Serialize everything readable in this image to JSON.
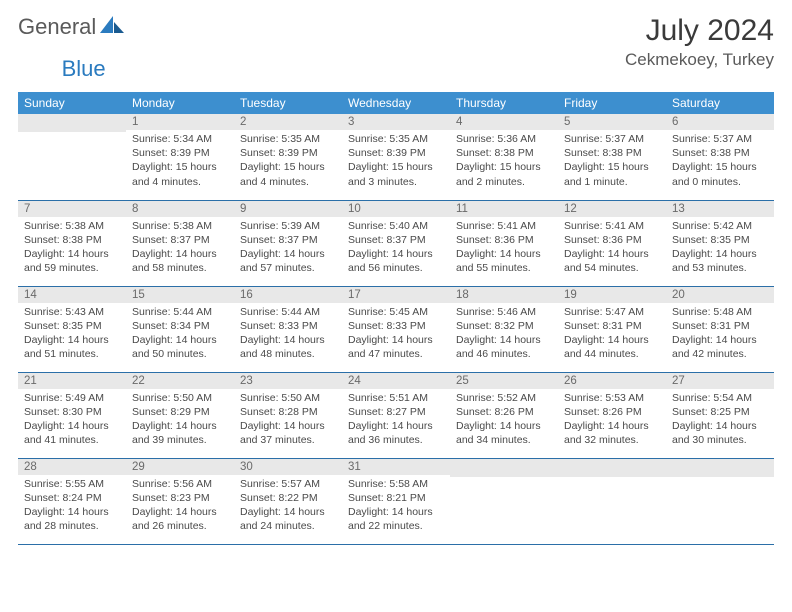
{
  "brand": {
    "word1": "General",
    "word2": "Blue"
  },
  "title": "July 2024",
  "location": "Cekmekoey, Turkey",
  "colors": {
    "header_bg": "#3d8fcf",
    "header_text": "#ffffff",
    "daynum_bg": "#e8e8e8",
    "row_border": "#2b6fa8",
    "logo_blue": "#2b7bbf"
  },
  "weekdays": [
    "Sunday",
    "Monday",
    "Tuesday",
    "Wednesday",
    "Thursday",
    "Friday",
    "Saturday"
  ],
  "weeks": [
    [
      {
        "n": "",
        "sr": "",
        "ss": "",
        "d1": "",
        "d2": ""
      },
      {
        "n": "1",
        "sr": "Sunrise: 5:34 AM",
        "ss": "Sunset: 8:39 PM",
        "d1": "Daylight: 15 hours",
        "d2": "and 4 minutes."
      },
      {
        "n": "2",
        "sr": "Sunrise: 5:35 AM",
        "ss": "Sunset: 8:39 PM",
        "d1": "Daylight: 15 hours",
        "d2": "and 4 minutes."
      },
      {
        "n": "3",
        "sr": "Sunrise: 5:35 AM",
        "ss": "Sunset: 8:39 PM",
        "d1": "Daylight: 15 hours",
        "d2": "and 3 minutes."
      },
      {
        "n": "4",
        "sr": "Sunrise: 5:36 AM",
        "ss": "Sunset: 8:38 PM",
        "d1": "Daylight: 15 hours",
        "d2": "and 2 minutes."
      },
      {
        "n": "5",
        "sr": "Sunrise: 5:37 AM",
        "ss": "Sunset: 8:38 PM",
        "d1": "Daylight: 15 hours",
        "d2": "and 1 minute."
      },
      {
        "n": "6",
        "sr": "Sunrise: 5:37 AM",
        "ss": "Sunset: 8:38 PM",
        "d1": "Daylight: 15 hours",
        "d2": "and 0 minutes."
      }
    ],
    [
      {
        "n": "7",
        "sr": "Sunrise: 5:38 AM",
        "ss": "Sunset: 8:38 PM",
        "d1": "Daylight: 14 hours",
        "d2": "and 59 minutes."
      },
      {
        "n": "8",
        "sr": "Sunrise: 5:38 AM",
        "ss": "Sunset: 8:37 PM",
        "d1": "Daylight: 14 hours",
        "d2": "and 58 minutes."
      },
      {
        "n": "9",
        "sr": "Sunrise: 5:39 AM",
        "ss": "Sunset: 8:37 PM",
        "d1": "Daylight: 14 hours",
        "d2": "and 57 minutes."
      },
      {
        "n": "10",
        "sr": "Sunrise: 5:40 AM",
        "ss": "Sunset: 8:37 PM",
        "d1": "Daylight: 14 hours",
        "d2": "and 56 minutes."
      },
      {
        "n": "11",
        "sr": "Sunrise: 5:41 AM",
        "ss": "Sunset: 8:36 PM",
        "d1": "Daylight: 14 hours",
        "d2": "and 55 minutes."
      },
      {
        "n": "12",
        "sr": "Sunrise: 5:41 AM",
        "ss": "Sunset: 8:36 PM",
        "d1": "Daylight: 14 hours",
        "d2": "and 54 minutes."
      },
      {
        "n": "13",
        "sr": "Sunrise: 5:42 AM",
        "ss": "Sunset: 8:35 PM",
        "d1": "Daylight: 14 hours",
        "d2": "and 53 minutes."
      }
    ],
    [
      {
        "n": "14",
        "sr": "Sunrise: 5:43 AM",
        "ss": "Sunset: 8:35 PM",
        "d1": "Daylight: 14 hours",
        "d2": "and 51 minutes."
      },
      {
        "n": "15",
        "sr": "Sunrise: 5:44 AM",
        "ss": "Sunset: 8:34 PM",
        "d1": "Daylight: 14 hours",
        "d2": "and 50 minutes."
      },
      {
        "n": "16",
        "sr": "Sunrise: 5:44 AM",
        "ss": "Sunset: 8:33 PM",
        "d1": "Daylight: 14 hours",
        "d2": "and 48 minutes."
      },
      {
        "n": "17",
        "sr": "Sunrise: 5:45 AM",
        "ss": "Sunset: 8:33 PM",
        "d1": "Daylight: 14 hours",
        "d2": "and 47 minutes."
      },
      {
        "n": "18",
        "sr": "Sunrise: 5:46 AM",
        "ss": "Sunset: 8:32 PM",
        "d1": "Daylight: 14 hours",
        "d2": "and 46 minutes."
      },
      {
        "n": "19",
        "sr": "Sunrise: 5:47 AM",
        "ss": "Sunset: 8:31 PM",
        "d1": "Daylight: 14 hours",
        "d2": "and 44 minutes."
      },
      {
        "n": "20",
        "sr": "Sunrise: 5:48 AM",
        "ss": "Sunset: 8:31 PM",
        "d1": "Daylight: 14 hours",
        "d2": "and 42 minutes."
      }
    ],
    [
      {
        "n": "21",
        "sr": "Sunrise: 5:49 AM",
        "ss": "Sunset: 8:30 PM",
        "d1": "Daylight: 14 hours",
        "d2": "and 41 minutes."
      },
      {
        "n": "22",
        "sr": "Sunrise: 5:50 AM",
        "ss": "Sunset: 8:29 PM",
        "d1": "Daylight: 14 hours",
        "d2": "and 39 minutes."
      },
      {
        "n": "23",
        "sr": "Sunrise: 5:50 AM",
        "ss": "Sunset: 8:28 PM",
        "d1": "Daylight: 14 hours",
        "d2": "and 37 minutes."
      },
      {
        "n": "24",
        "sr": "Sunrise: 5:51 AM",
        "ss": "Sunset: 8:27 PM",
        "d1": "Daylight: 14 hours",
        "d2": "and 36 minutes."
      },
      {
        "n": "25",
        "sr": "Sunrise: 5:52 AM",
        "ss": "Sunset: 8:26 PM",
        "d1": "Daylight: 14 hours",
        "d2": "and 34 minutes."
      },
      {
        "n": "26",
        "sr": "Sunrise: 5:53 AM",
        "ss": "Sunset: 8:26 PM",
        "d1": "Daylight: 14 hours",
        "d2": "and 32 minutes."
      },
      {
        "n": "27",
        "sr": "Sunrise: 5:54 AM",
        "ss": "Sunset: 8:25 PM",
        "d1": "Daylight: 14 hours",
        "d2": "and 30 minutes."
      }
    ],
    [
      {
        "n": "28",
        "sr": "Sunrise: 5:55 AM",
        "ss": "Sunset: 8:24 PM",
        "d1": "Daylight: 14 hours",
        "d2": "and 28 minutes."
      },
      {
        "n": "29",
        "sr": "Sunrise: 5:56 AM",
        "ss": "Sunset: 8:23 PM",
        "d1": "Daylight: 14 hours",
        "d2": "and 26 minutes."
      },
      {
        "n": "30",
        "sr": "Sunrise: 5:57 AM",
        "ss": "Sunset: 8:22 PM",
        "d1": "Daylight: 14 hours",
        "d2": "and 24 minutes."
      },
      {
        "n": "31",
        "sr": "Sunrise: 5:58 AM",
        "ss": "Sunset: 8:21 PM",
        "d1": "Daylight: 14 hours",
        "d2": "and 22 minutes."
      },
      {
        "n": "",
        "sr": "",
        "ss": "",
        "d1": "",
        "d2": ""
      },
      {
        "n": "",
        "sr": "",
        "ss": "",
        "d1": "",
        "d2": ""
      },
      {
        "n": "",
        "sr": "",
        "ss": "",
        "d1": "",
        "d2": ""
      }
    ]
  ]
}
